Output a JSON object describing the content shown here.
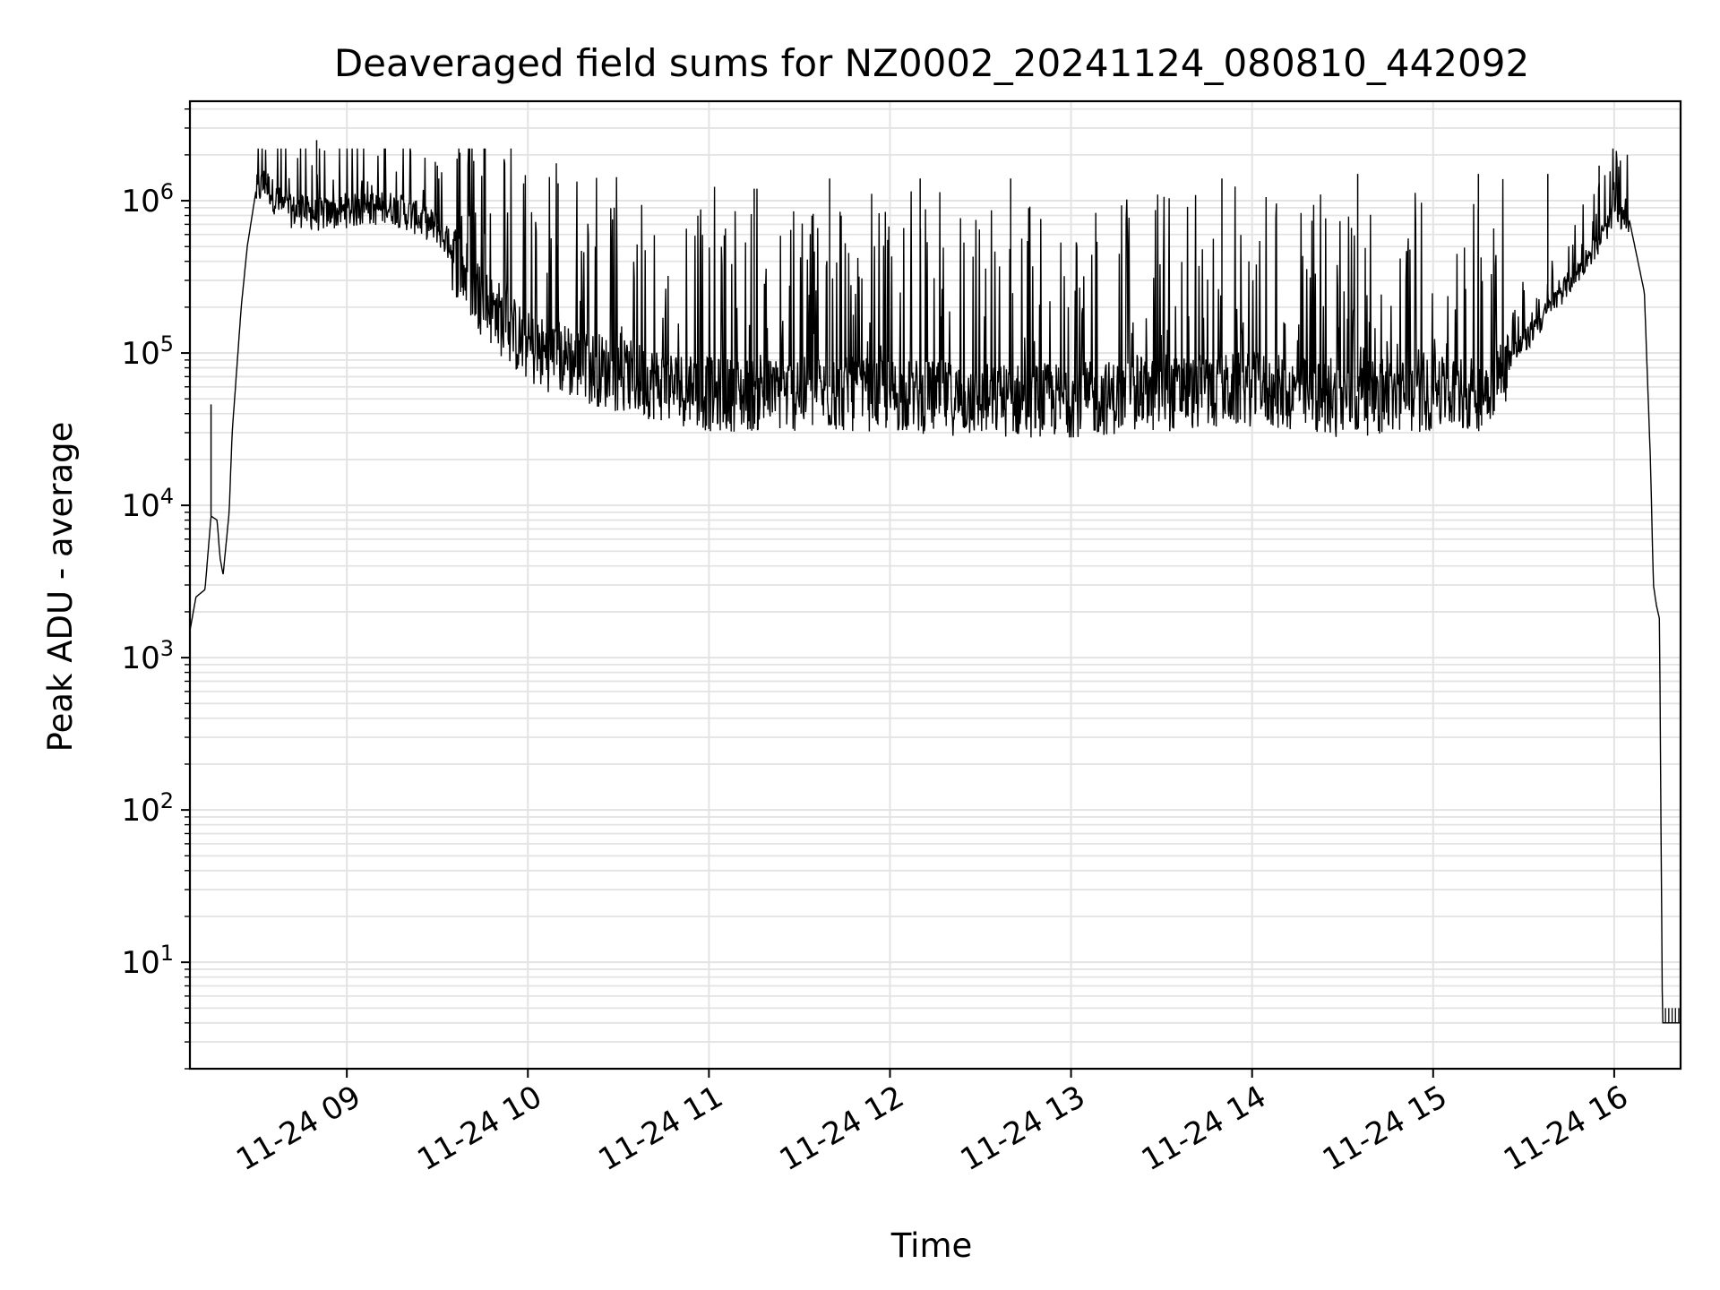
{
  "chart_data": {
    "type": "line",
    "title": "Deaveraged field sums for NZ0002_20241124_080810_442092",
    "xlabel": "Time",
    "ylabel": "Peak ADU - average",
    "yscale": "log",
    "ylim": [
      2,
      4500000
    ],
    "xlim": [
      "11-24 08:08",
      "11-24 16:22"
    ],
    "grid": true,
    "line_color": "#000000",
    "grid_color": "#e3e3e3",
    "x_ticks": [
      "11-24 09",
      "11-24 10",
      "11-24 11",
      "11-24 12",
      "11-24 13",
      "11-24 14",
      "11-24 15",
      "11-24 16"
    ],
    "y_ticks": [
      {
        "base": "10",
        "exp": "1",
        "value": 10
      },
      {
        "base": "10",
        "exp": "2",
        "value": 100
      },
      {
        "base": "10",
        "exp": "3",
        "value": 1000
      },
      {
        "base": "10",
        "exp": "4",
        "value": 10000
      },
      {
        "base": "10",
        "exp": "5",
        "value": 100000
      },
      {
        "base": "10",
        "exp": "6",
        "value": 1000000
      }
    ],
    "series": [
      {
        "x": [
          "08:08",
          "08:10",
          "08:13",
          "08:15",
          "08:17",
          "08:18",
          "08:19",
          "08:21",
          "08:22",
          "08:25",
          "08:27",
          "08:30",
          "08:33",
          "08:36",
          "08:40",
          "08:45",
          "08:50",
          "09:00",
          "09:15",
          "09:30",
          "09:45",
          "10:00",
          "10:30",
          "11:00",
          "11:30",
          "12:00",
          "12:30",
          "13:00",
          "13:30",
          "14:00",
          "14:30",
          "15:00",
          "15:15",
          "15:30",
          "15:45",
          "15:55",
          "16:00",
          "16:05",
          "16:10",
          "16:12",
          "16:13",
          "16:14",
          "16:15",
          "16:16",
          "16:17",
          "16:20",
          "16:22"
        ],
        "y": [
          1500,
          2500,
          2800,
          8500,
          8000,
          4500,
          3500,
          9000,
          30000,
          200000,
          500000,
          1200000,
          1400000,
          1100000,
          900000,
          900000,
          850000,
          900000,
          950000,
          700000,
          250000,
          120000,
          80000,
          60000,
          60000,
          60000,
          55000,
          55000,
          60000,
          65000,
          55000,
          60000,
          60000,
          120000,
          300000,
          550000,
          850000,
          750000,
          250000,
          20000,
          3000,
          2200,
          1800,
          4,
          4,
          4,
          4
        ],
        "spikes": [
          {
            "x": "08:15",
            "y": 46000
          },
          {
            "x": "08:50",
            "y": 2500000
          },
          {
            "x": "09:30",
            "y": 1700000
          },
          {
            "x": "10:10",
            "y": 1300000
          },
          {
            "x": "11:15",
            "y": 1200000
          },
          {
            "x": "11:40",
            "y": 1400000
          },
          {
            "x": "12:10",
            "y": 1400000
          },
          {
            "x": "12:40",
            "y": 1400000
          },
          {
            "x": "13:50",
            "y": 1400000
          },
          {
            "x": "14:35",
            "y": 1500000
          },
          {
            "x": "15:15",
            "y": 1500000
          },
          {
            "x": "15:38",
            "y": 1500000
          },
          {
            "x": "15:55",
            "y": 1700000
          }
        ]
      }
    ]
  }
}
